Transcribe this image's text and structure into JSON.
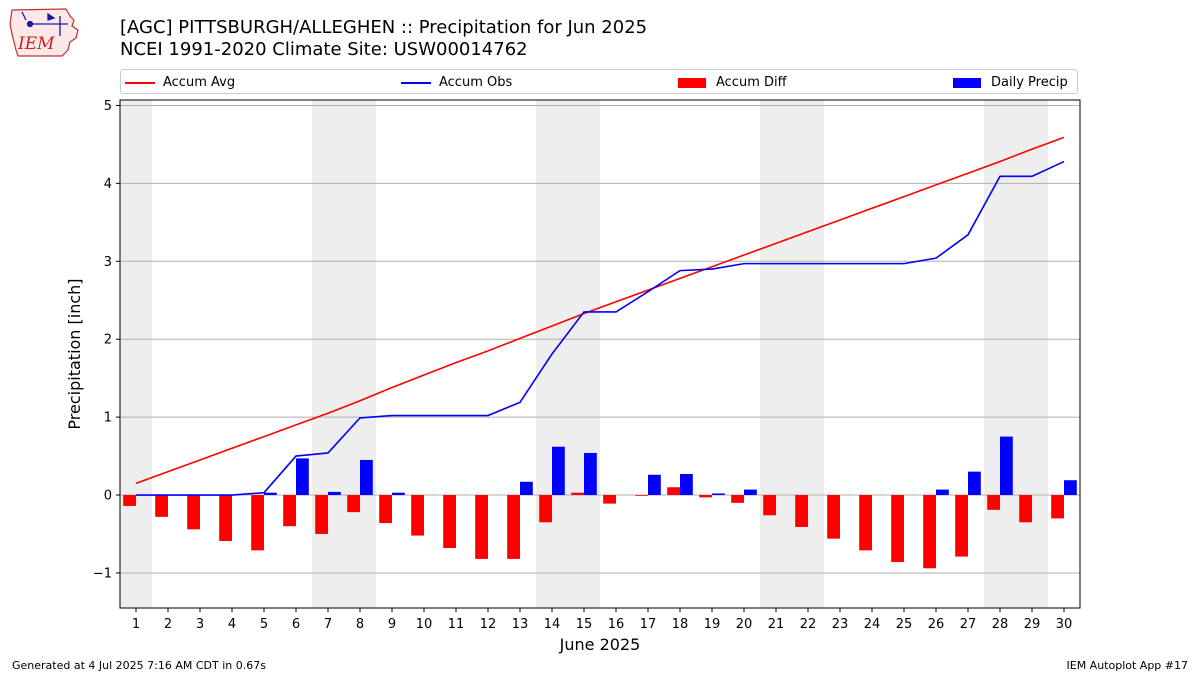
{
  "header": {
    "title_line1": "[AGC] PITTSBURGH/ALLEGHEN :: Precipitation for Jun 2025",
    "title_line2": "NCEI 1991-2020 Climate Site: USW00014762"
  },
  "logo": {
    "text": "IEM"
  },
  "footer": {
    "left": "Generated at 4 Jul 2025 7:16 AM CDT in 0.67s",
    "right": "IEM Autoplot App #17"
  },
  "legend": {
    "accum_avg": "Accum Avg",
    "accum_obs": "Accum Obs",
    "accum_diff": "Accum Diff",
    "daily_precip": "Daily Precip"
  },
  "colors": {
    "accum_avg": "#ff0000",
    "accum_obs": "#0000ff",
    "accum_diff": "#ff0000",
    "daily_precip": "#0000ff",
    "weekend_shade": "#eeeeee",
    "grid": "#b0b0b0"
  },
  "chart_data": {
    "type": "bar",
    "xlabel": "June 2025",
    "ylabel": "Precipitation [inch]",
    "ylim": [
      -1.45,
      5.07
    ],
    "xlim": [
      0.5,
      30.5
    ],
    "yticks": [
      -1,
      0,
      1,
      2,
      3,
      4,
      5
    ],
    "ytick_labels": [
      "−1",
      "0",
      "1",
      "2",
      "3",
      "4",
      "5"
    ],
    "grid": "horizontal",
    "legend_position": "top",
    "days": [
      1,
      2,
      3,
      4,
      5,
      6,
      7,
      8,
      9,
      10,
      11,
      12,
      13,
      14,
      15,
      16,
      17,
      18,
      19,
      20,
      21,
      22,
      23,
      24,
      25,
      26,
      27,
      28,
      29,
      30
    ],
    "x_tick_labels": [
      "1",
      "2",
      "3",
      "4",
      "5",
      "6",
      "7",
      "8",
      "9",
      "10",
      "11",
      "12",
      "13",
      "14",
      "15",
      "16",
      "17",
      "18",
      "19",
      "20",
      "21",
      "22",
      "23",
      "24",
      "25",
      "26",
      "27",
      "28",
      "29",
      "30"
    ],
    "weekend_days": [
      1,
      7,
      8,
      14,
      15,
      21,
      22,
      28,
      29
    ],
    "series": [
      {
        "name": "Accum Avg",
        "kind": "line",
        "values": [
          0.15,
          0.3,
          0.45,
          0.6,
          0.75,
          0.9,
          1.05,
          1.21,
          1.38,
          1.54,
          1.7,
          1.85,
          2.01,
          2.17,
          2.33,
          2.48,
          2.63,
          2.78,
          2.93,
          3.08,
          3.23,
          3.38,
          3.53,
          3.68,
          3.83,
          3.98,
          4.13,
          4.28,
          4.44,
          4.59
        ]
      },
      {
        "name": "Accum Obs",
        "kind": "line",
        "values": [
          0.0,
          0.0,
          0.0,
          0.0,
          0.03,
          0.5,
          0.54,
          0.99,
          1.02,
          1.02,
          1.02,
          1.02,
          1.19,
          1.81,
          2.35,
          2.35,
          2.61,
          2.88,
          2.9,
          2.97,
          2.97,
          2.97,
          2.97,
          2.97,
          2.97,
          3.04,
          3.34,
          4.09,
          4.09,
          4.28
        ]
      },
      {
        "name": "Accum Diff",
        "kind": "bar",
        "values": [
          -0.14,
          -0.28,
          -0.44,
          -0.59,
          -0.71,
          -0.4,
          -0.5,
          -0.22,
          -0.36,
          -0.52,
          -0.68,
          -0.82,
          -0.82,
          -0.35,
          0.03,
          -0.11,
          -0.01,
          0.1,
          -0.03,
          -0.1,
          -0.26,
          -0.41,
          -0.56,
          -0.71,
          -0.86,
          -0.94,
          -0.79,
          -0.19,
          -0.35,
          -0.3
        ]
      },
      {
        "name": "Daily Precip",
        "kind": "bar",
        "values": [
          0.0,
          0.0,
          0.0,
          0.0,
          0.03,
          0.47,
          0.04,
          0.45,
          0.03,
          0.0,
          0.0,
          0.0,
          0.17,
          0.62,
          0.54,
          0.0,
          0.26,
          0.27,
          0.02,
          0.07,
          0.0,
          0.0,
          0.0,
          0.0,
          0.0,
          0.07,
          0.3,
          0.75,
          0.0,
          0.19
        ]
      }
    ]
  }
}
